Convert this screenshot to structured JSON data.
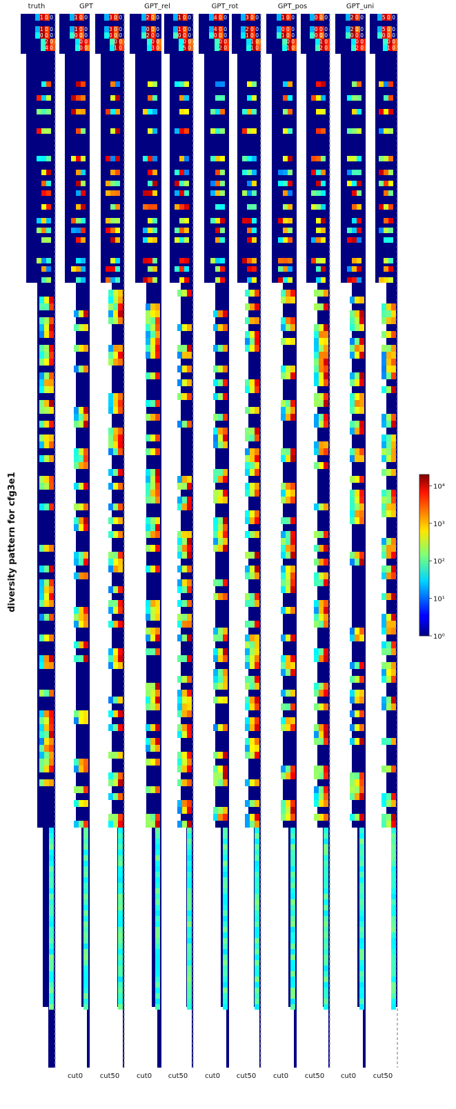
{
  "chart_data": {
    "type": "heatmap",
    "ylabel": "diversity pattern for cfg3e1",
    "panels": [
      {
        "name": "truth"
      },
      {
        "name": "GPT"
      },
      {
        "name": "GPT_rel"
      },
      {
        "name": "GPT_rot"
      },
      {
        "name": "GPT_pos"
      },
      {
        "name": "GPT_uni"
      }
    ],
    "column_tick_labels": [
      "cut0",
      "cut50",
      "cut0",
      "cut50",
      "cut0",
      "cut50",
      "cut0",
      "cut50",
      "cut0",
      "cut50"
    ],
    "colorscale": "jet",
    "color_scale_type": "log",
    "colorbar": {
      "ticks": [
        {
          "value": 1,
          "label": "10⁰"
        },
        {
          "value": 10,
          "label": "10¹"
        },
        {
          "value": 100,
          "label": "10²"
        },
        {
          "value": 1000,
          "label": "10³"
        },
        {
          "value": 10000,
          "label": "10⁴"
        }
      ],
      "range": [
        1,
        20000
      ]
    },
    "grid": false,
    "top_cell_labels": {
      "truth": [
        "1 0 0",
        "1 0 0",
        "0 0 0",
        "2 0",
        "4 0"
      ],
      "GPT": [
        "1 0 0",
        "1 0 0",
        "0 0 0",
        "0 0",
        "0 0"
      ],
      "GPT_cut50": [
        "3 0 0",
        "3 0 0",
        "0 0 0",
        "0 0",
        "1 0"
      ],
      "GPT_rel": [
        "2 0 0",
        "0 0 0",
        "2 0 0",
        "0 0",
        "3 0"
      ],
      "GPT_rel_cut50": [
        "1 0 0",
        "1 0 0",
        "0 0 0",
        "0 0",
        "5 0"
      ],
      "GPT_rot": [
        "4 0 0",
        "4 0 0",
        "0 0 0",
        "0 0",
        "2 0"
      ],
      "GPT_rot_cut50": [
        "3 0 0",
        "2 0 0",
        "1 0 0",
        "1 0",
        "1 0"
      ],
      "GPT_pos": [
        "1 0 0",
        "0 0 0",
        "1 0 0",
        "0 0",
        "1 0"
      ],
      "GPT_pos_cut50": [
        "0 0 0",
        "0 0 0",
        "0 0 0",
        "1 0",
        "2 0"
      ],
      "GPT_uni": [
        "2 0 0",
        "2 0 0",
        "0 0 0",
        "0 0",
        "2 0"
      ],
      "GPT_uni_cut50": [
        "5 0 0",
        "5 0 0",
        "0 0 0",
        "0 0",
        "1 0"
      ]
    }
  }
}
